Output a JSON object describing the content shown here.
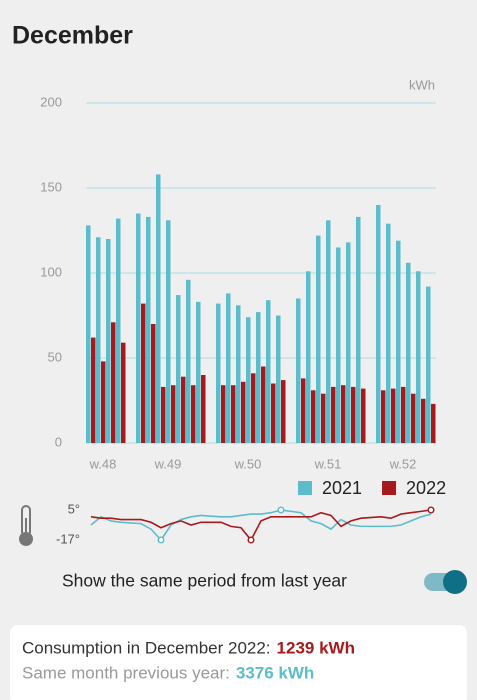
{
  "header": {
    "title": "December"
  },
  "chart_data": [
    {
      "type": "bar",
      "unit_label": "kWh",
      "categories": [
        "w.48",
        "w.49",
        "w.50",
        "w.51",
        "w.52"
      ],
      "series": [
        {
          "name": "2021",
          "color": "#5bbccc",
          "values": [
            [
              128,
              121,
              120,
              132
            ],
            [
              135,
              133,
              158,
              131,
              87,
              96,
              83
            ],
            [
              82,
              88,
              81,
              74,
              77,
              84,
              75
            ],
            [
              85,
              101,
              122,
              131,
              115,
              118,
              133
            ],
            [
              140,
              129,
              119,
              106,
              101,
              92
            ]
          ]
        },
        {
          "name": "2022",
          "color": "#a8191c",
          "values": [
            [
              62,
              48,
              71,
              59
            ],
            [
              82,
              70,
              33,
              34,
              39,
              34,
              40
            ],
            [
              34,
              34,
              36,
              41,
              45,
              35,
              37
            ],
            [
              38,
              31,
              29,
              33,
              34,
              33,
              32
            ],
            [
              31,
              32,
              33,
              29,
              26,
              23
            ]
          ]
        }
      ],
      "ylim": [
        0,
        200
      ],
      "yticks": [
        0,
        50,
        100,
        150,
        200
      ],
      "grid": true,
      "legend": "bottom-right"
    },
    {
      "type": "line",
      "series": [
        {
          "color": "#5bbccc",
          "values": [
            -6,
            0,
            -3,
            -4,
            -5,
            -9,
            -17,
            -6,
            -2,
            0,
            1,
            0,
            0,
            1,
            2,
            2,
            3,
            5,
            3,
            -3,
            -5,
            -9,
            -2,
            -6,
            -7,
            -7,
            -7,
            -6,
            -3,
            0,
            2
          ]
        },
        {
          "color": "#a8191c",
          "values": [
            0,
            -1,
            -1,
            -2,
            -2,
            -4,
            -8,
            -5,
            -3,
            -6,
            -4,
            -4,
            -7,
            -8,
            -17,
            -3,
            0,
            0,
            0,
            0,
            3,
            1,
            -7,
            -3,
            -1,
            0,
            -1,
            2,
            3,
            4,
            5
          ]
        }
      ],
      "ylim": [
        -17,
        5
      ],
      "yticks": [
        {
          "value": 5,
          "label": "5°"
        },
        {
          "value": -17,
          "label": "-17°"
        }
      ],
      "markers": "min-max"
    }
  ],
  "toggle": {
    "label": "Show the same period from last year",
    "on": true
  },
  "summary": {
    "consumption_label": "Consumption in December 2022:",
    "consumption_value": "1239 kWh",
    "previous_label": "Same month previous year:",
    "previous_value": "3376 kWh"
  }
}
